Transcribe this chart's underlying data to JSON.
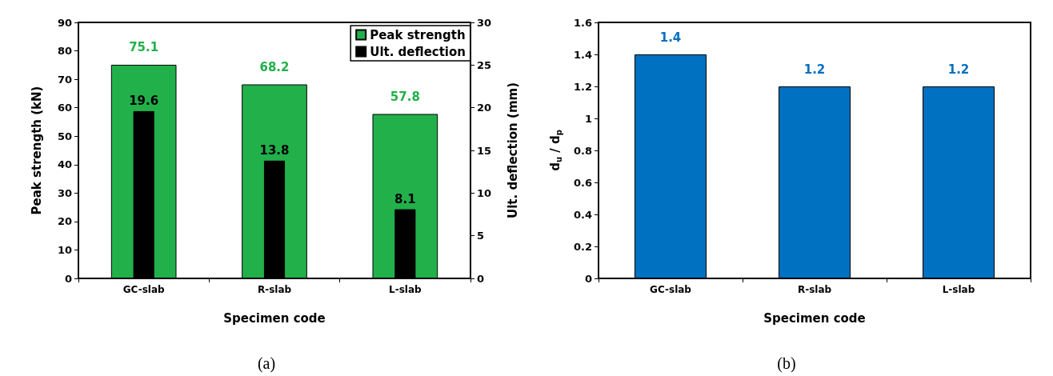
{
  "chart_data": [
    {
      "type": "bar",
      "categories": [
        "GC-slab",
        "R-slab",
        "L-slab"
      ],
      "xlabel": "Specimen code",
      "ylabel": "Peak strength (kN)",
      "y2label": "Ult. deflection (mm)",
      "ylim": [
        0,
        90
      ],
      "yticks": [
        0,
        10,
        20,
        30,
        40,
        50,
        60,
        70,
        80,
        90
      ],
      "y2lim": [
        0,
        30
      ],
      "y2ticks": [
        0,
        5,
        10,
        15,
        20,
        25,
        30
      ],
      "series": [
        {
          "name": "Peak strength",
          "color": "#22b04b",
          "values": [
            75.1,
            68.2,
            57.8
          ]
        },
        {
          "name": "Ult. deflection",
          "color": "#000000",
          "axis": "y2",
          "values": [
            19.6,
            13.8,
            8.1
          ]
        }
      ],
      "data_labels": true,
      "legend": "top right",
      "annotations": [
        "(a)"
      ]
    },
    {
      "type": "bar",
      "categories": [
        "GC-slab",
        "R-slab",
        "L-slab"
      ],
      "xlabel": "Specimen code",
      "ylabel": "d$_{u}$ / d$_{p}$",
      "ylim": [
        0,
        1.6
      ],
      "yticks": [
        0,
        0.2,
        0.4,
        0.6,
        0.8,
        1,
        1.2,
        1.4,
        1.6
      ],
      "series": [
        {
          "color": "#0070c0",
          "values": [
            1.4,
            1.2,
            1.2
          ]
        }
      ],
      "data_labels": true,
      "annotations": [
        "(b)"
      ]
    }
  ]
}
